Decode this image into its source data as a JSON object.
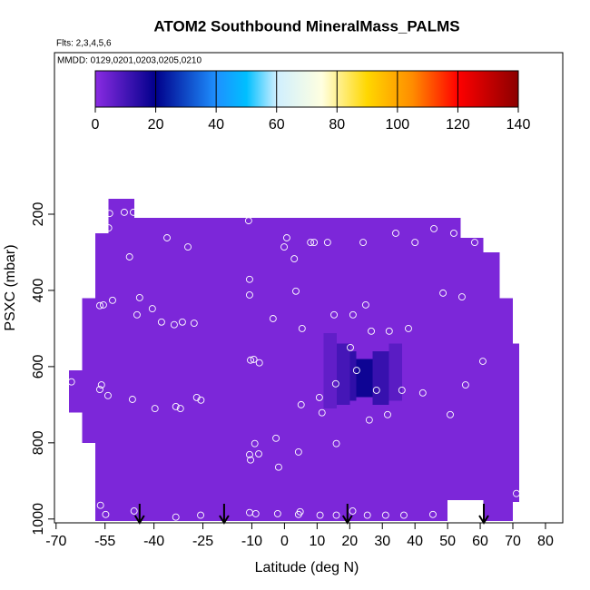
{
  "chart_data": {
    "type": "curtain",
    "title": "ATOM2 Southbound MineralMass_PALMS",
    "subtitle": "Flts: 2,3,4,5,6",
    "annotation": "MMDD: 0129,0201,0203,0205,0210",
    "xlabel": "Latitude (deg N)",
    "ylabel": "PSXC (mbar)",
    "xlim": [
      -70.5,
      85.3
    ],
    "ylim": [
      1010,
      -224
    ],
    "xticks": [
      -70,
      -55,
      -40,
      -25,
      -10,
      0,
      10,
      20,
      30,
      40,
      50,
      60,
      70,
      80
    ],
    "yticks": [
      200,
      400,
      600,
      800,
      1000
    ],
    "colorbar": {
      "clim": [
        0,
        140
      ],
      "ticks": [
        0,
        20,
        40,
        60,
        80,
        100,
        120,
        140
      ],
      "colorscale": [
        [
          0,
          "#8a2be2"
        ],
        [
          20,
          "#00008b"
        ],
        [
          40,
          "#1e90ff"
        ],
        [
          50,
          "#00bfff"
        ],
        [
          60,
          "#cfefff"
        ],
        [
          75,
          "#ffffe0"
        ],
        [
          90,
          "#ffd700"
        ],
        [
          105,
          "#ff8c00"
        ],
        [
          120,
          "#ff0000"
        ],
        [
          140,
          "#8b0000"
        ]
      ]
    },
    "cells": [
      {
        "lat": [
          -66,
          -62
        ],
        "p": [
          610,
          720
        ],
        "value": 2
      },
      {
        "lat": [
          -62,
          -58
        ],
        "p": [
          420,
          800
        ],
        "value": 2
      },
      {
        "lat": [
          -58,
          -54
        ],
        "p": [
          250,
          1005
        ],
        "value": 2
      },
      {
        "lat": [
          -54,
          -46
        ],
        "p": [
          160,
          1005
        ],
        "value": 2
      },
      {
        "lat": [
          -46,
          50
        ],
        "p": [
          210,
          1005
        ],
        "value": 2
      },
      {
        "lat": [
          50,
          54
        ],
        "p": [
          210,
          950
        ],
        "value": 2
      },
      {
        "lat": [
          54,
          61
        ],
        "p": [
          262,
          950
        ],
        "value": 2
      },
      {
        "lat": [
          61,
          66
        ],
        "p": [
          300,
          1005
        ],
        "value": 2
      },
      {
        "lat": [
          66,
          70
        ],
        "p": [
          420,
          1005
        ],
        "value": 2
      },
      {
        "lat": [
          70,
          72
        ],
        "p": [
          540,
          955
        ],
        "value": 2
      },
      {
        "lat": [
          12,
          16
        ],
        "p": [
          512,
          710
        ],
        "value": 6
      },
      {
        "lat": [
          32,
          36
        ],
        "p": [
          540,
          690
        ],
        "value": 7
      },
      {
        "lat": [
          16,
          20
        ],
        "p": [
          540,
          700
        ],
        "value": 10
      },
      {
        "lat": [
          27,
          32
        ],
        "p": [
          560,
          700
        ],
        "value": 12
      },
      {
        "lat": [
          20,
          22
        ],
        "p": [
          560,
          690
        ],
        "value": 13
      },
      {
        "lat": [
          22,
          27
        ],
        "p": [
          580,
          680
        ],
        "value": 18
      }
    ],
    "points": {
      "lat": [
        -53.6,
        -49.1,
        -46.3,
        -53.9,
        -47.5,
        -36,
        -29.6,
        -11,
        0.7,
        -0.1,
        3,
        8,
        9.1,
        13.2,
        24.1,
        34.1,
        40,
        45.8,
        51.9,
        58.3,
        -56.6,
        -55.5,
        -52.7,
        -44.4,
        -40.5,
        -45.2,
        -37.7,
        -33.8,
        -31.3,
        -27.7,
        -10.7,
        -10.7,
        -3.5,
        3.5,
        5.4,
        15.2,
        21,
        24.9,
        48.6,
        54.4,
        38,
        32.1,
        26.6,
        20.2,
        22.1,
        15.7,
        28.2,
        36,
        42.4,
        60.8,
        55.5,
        -10.4,
        -9.4,
        -7.7,
        -65.3,
        -56.1,
        -56.6,
        -54.1,
        -46.6,
        -39.7,
        -33.3,
        -31.9,
        -26.9,
        -25.6,
        5.1,
        10.7,
        11.5,
        26,
        31.6,
        50.8,
        -2.6,
        -9.1,
        -7.9,
        -10.7,
        -10.4,
        4.3,
        15.9,
        -1.8,
        71.1,
        -56.4,
        -54.8,
        -46.1,
        -33.3,
        -25.7,
        -10.7,
        -8.8,
        -2.1,
        4.3,
        4.8,
        10.9,
        15.9,
        20.9,
        25.4,
        31,
        36.6,
        45.5
      ],
      "p": [
        198,
        195,
        195,
        236,
        312,
        262,
        286,
        217,
        262,
        286,
        317,
        274,
        274,
        274,
        274,
        250,
        274,
        238,
        250,
        274,
        440,
        438,
        426,
        419,
        448,
        464,
        483,
        490,
        483,
        486,
        371,
        412,
        474,
        402,
        500,
        464,
        464,
        438,
        407,
        417,
        500,
        507,
        507,
        550,
        610,
        645,
        662,
        662,
        669,
        586,
        648,
        583,
        581,
        590,
        640,
        648,
        660,
        676,
        686,
        710,
        705,
        710,
        681,
        688,
        700,
        681,
        721,
        740,
        726,
        726,
        788,
        802,
        829,
        831,
        845,
        824,
        802,
        864,
        933,
        964,
        988,
        979,
        995,
        990,
        983,
        986,
        986,
        988,
        981,
        990,
        990,
        979,
        990,
        990,
        990,
        988
      ]
    },
    "arrows_lat": [
      -44.4,
      -18.5,
      19.3,
      61.1
    ]
  }
}
